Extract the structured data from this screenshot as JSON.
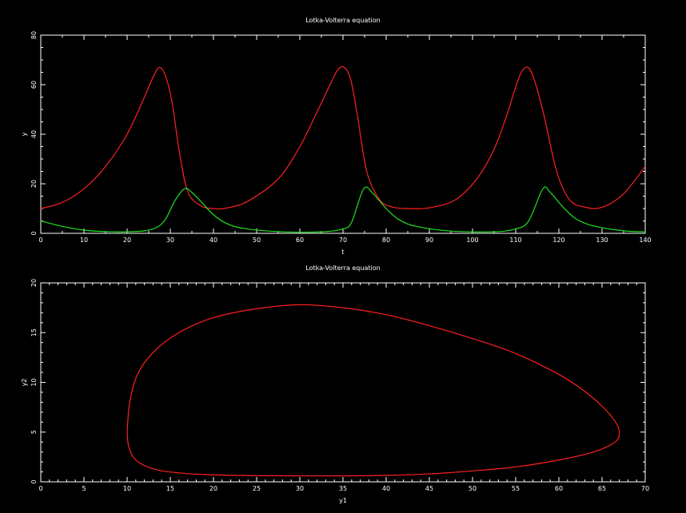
{
  "chart_data": [
    {
      "type": "line",
      "title": "Lotka-Volterra equation",
      "xlabel": "t",
      "ylabel": "y",
      "xlim": [
        0,
        140
      ],
      "ylim": [
        0,
        80
      ],
      "xticks": [
        0,
        10,
        20,
        30,
        40,
        50,
        60,
        70,
        80,
        90,
        100,
        110,
        120,
        130,
        140
      ],
      "yticks": [
        0,
        20,
        40,
        60,
        80
      ],
      "grid": false,
      "series": [
        {
          "color": "#ff2020",
          "x": [
            0,
            5,
            10,
            15,
            20,
            24,
            26,
            27.5,
            29,
            30.5,
            32,
            34,
            37,
            40,
            43,
            48,
            55,
            60,
            64,
            67,
            68.8,
            70.3,
            71.8,
            73.3,
            75.5,
            78.5,
            81.5,
            85,
            90,
            96,
            101,
            105,
            108,
            109.8,
            111.3,
            112.8,
            114.3,
            116.5,
            119.5,
            122.5,
            126,
            130,
            135,
            140
          ],
          "values": [
            10,
            12.5,
            18,
            27,
            40,
            55,
            63,
            67,
            63,
            52,
            34,
            17,
            11.2,
            10,
            10.2,
            13,
            22,
            35,
            49,
            60,
            66,
            67,
            62,
            48,
            25,
            13.5,
            10.6,
            10,
            10.3,
            13.5,
            22,
            34,
            48,
            58,
            65,
            67,
            62,
            48,
            25,
            13.5,
            10.6,
            10.5,
            16,
            27
          ]
        },
        {
          "color": "#20e020",
          "x": [
            0,
            5,
            10,
            15,
            20,
            24,
            27,
            29,
            31,
            33.3,
            35,
            37,
            40,
            43,
            47,
            55,
            65,
            70,
            72,
            74.8,
            77,
            80,
            83,
            87,
            95,
            105,
            110,
            113,
            116.3,
            118,
            121,
            124,
            128,
            135,
            140
          ],
          "values": [
            5,
            2.8,
            1.3,
            0.7,
            0.6,
            1,
            2.5,
            6,
            13,
            18,
            16.5,
            13,
            7.5,
            4,
            2,
            0.7,
            0.6,
            1.8,
            4.5,
            18,
            16,
            10,
            5.5,
            2.8,
            0.9,
            0.6,
            1.8,
            5,
            18,
            16.5,
            10.5,
            5.8,
            3,
            1,
            0.6
          ]
        }
      ]
    },
    {
      "type": "line",
      "title": "Lotka-Volterra equation",
      "xlabel": "y1",
      "ylabel": "y2",
      "xlim": [
        0,
        70
      ],
      "ylim": [
        0,
        20
      ],
      "xticks": [
        0,
        5,
        10,
        15,
        20,
        25,
        30,
        35,
        40,
        45,
        50,
        55,
        60,
        65,
        70
      ],
      "yticks": [
        0,
        5,
        10,
        15,
        20
      ],
      "grid": false,
      "series": [
        {
          "color": "#ff2020",
          "x": [
            10,
            10.3,
            11.2,
            13,
            16,
            20,
            25,
            30,
            35,
            40,
            45,
            50,
            55,
            60,
            63,
            65,
            66.5,
            67,
            66.5,
            64,
            60,
            55,
            50,
            45,
            40,
            35,
            30,
            25,
            20,
            16,
            13,
            11,
            10.2,
            10
          ],
          "values": [
            5,
            8,
            10.8,
            13,
            15,
            16.5,
            17.4,
            17.8,
            17.5,
            16.8,
            15.7,
            14.4,
            12.9,
            10.8,
            9.1,
            7.6,
            6.1,
            5,
            4,
            3,
            2.2,
            1.5,
            1.1,
            0.8,
            0.65,
            0.6,
            0.6,
            0.62,
            0.7,
            0.9,
            1.3,
            2.2,
            3.5,
            5
          ]
        }
      ]
    }
  ]
}
